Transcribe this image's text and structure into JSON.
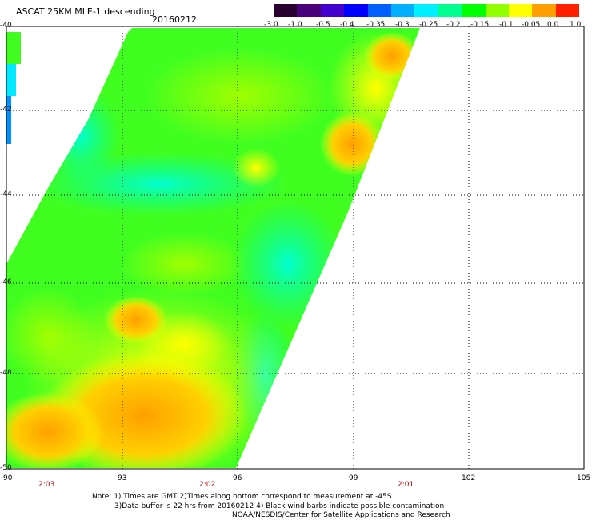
{
  "header": {
    "title": "ASCAT 25KM MLE-1 descending",
    "date": "20160212"
  },
  "colorbar": {
    "labels": [
      "-3.0",
      "-1.0",
      "-0.5",
      "-0.4",
      "-0.35",
      "-0.3",
      "-0.25",
      "-0.2",
      "-0.15",
      "-0.1",
      "-0.05",
      "0.0",
      "1.0"
    ],
    "colors": [
      "#2a0030",
      "#4a007a",
      "#4400cc",
      "#0000ff",
      "#0050ff",
      "#00a0ff",
      "#00e0ff",
      "#00ff80",
      "#00ff00",
      "#80ff00",
      "#ffff00",
      "#ffa000",
      "#ff2000"
    ]
  },
  "axes": {
    "lat_labels": [
      "-40",
      "-42",
      "-44",
      "-46",
      "-48",
      "-50"
    ],
    "lon_labels": [
      "90",
      "93",
      "96",
      "99",
      "102",
      "105"
    ],
    "time_labels": [
      "2:03",
      "2:02",
      "2:01"
    ]
  },
  "notes": {
    "line1": "Note: 1) Times are GMT 2)Times along bottom correspond to measurement at -45S",
    "line2": "3)Data buffer is 22 hrs from 20160212 4) Black wind barbs indicate possible contamination",
    "line3": "NOAA/NESDIS/Center for Satellite Applications and Research"
  }
}
